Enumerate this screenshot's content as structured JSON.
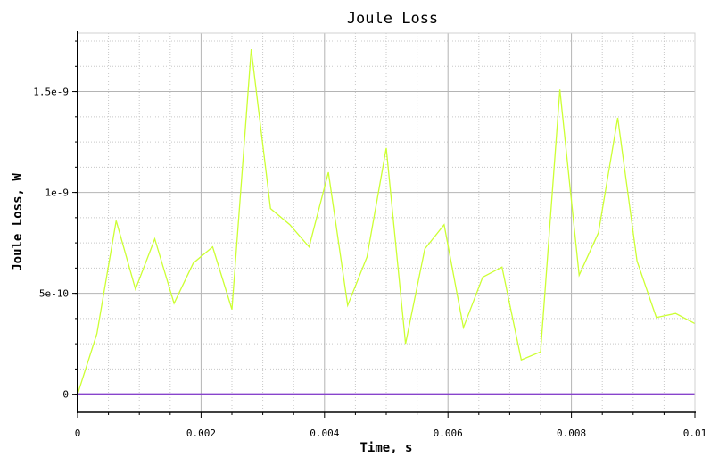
{
  "chart_data": {
    "type": "line",
    "title": "Joule Loss",
    "xlabel": "Time, s",
    "ylabel": "Joule Loss, W",
    "xlim": [
      0,
      0.01
    ],
    "ylim": [
      -9e-11,
      1.79e-09
    ],
    "grid": true,
    "x_ticks": [
      0,
      0.002,
      0.004,
      0.006,
      0.008,
      0.01
    ],
    "x_tick_labels": [
      "0",
      "0.002",
      "0.004",
      "0.006",
      "0.008",
      "0.01"
    ],
    "y_ticks": [
      0,
      5e-10,
      1e-09,
      1.5e-09
    ],
    "y_tick_labels": [
      "0",
      "5e-10",
      "1e-9",
      "1.5e-9"
    ],
    "series": [
      {
        "color": "#ccff33",
        "x": [
          0,
          0.0003125,
          0.000625,
          0.0009375,
          0.00125,
          0.0015625,
          0.001875,
          0.0021875,
          0.0025,
          0.0028125,
          0.003125,
          0.0034375,
          0.00375,
          0.0040625,
          0.004375,
          0.0046875,
          0.005,
          0.0053125,
          0.005625,
          0.0059375,
          0.00625,
          0.0065625,
          0.006875,
          0.0071875,
          0.0075,
          0.0078125,
          0.008125,
          0.0084375,
          0.00875,
          0.0090625,
          0.009375,
          0.0096875,
          0.01
        ],
        "y": [
          0,
          3e-10,
          8.6e-10,
          5.2e-10,
          7.7e-10,
          4.5e-10,
          6.5e-10,
          7.3e-10,
          4.2e-10,
          1.71e-09,
          9.2e-10,
          8.4e-10,
          7.3e-10,
          1.1e-09,
          4.4e-10,
          6.8e-10,
          1.22e-09,
          2.5e-10,
          7.2e-10,
          8.4e-10,
          3.3e-10,
          5.8e-10,
          6.3e-10,
          1.7e-10,
          2.1e-10,
          1.51e-09,
          5.9e-10,
          8e-10,
          1.37e-09,
          6.6e-10,
          3.8e-10,
          4e-10,
          3.5e-10
        ]
      },
      {
        "color": "#8844cc",
        "x": [
          0,
          0.01
        ],
        "y": [
          0,
          0
        ]
      }
    ]
  }
}
